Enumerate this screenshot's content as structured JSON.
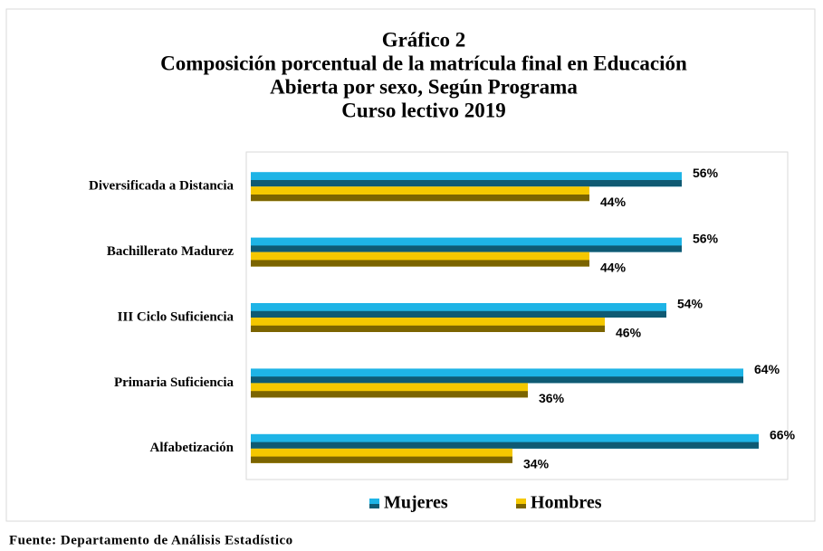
{
  "chart_data": {
    "type": "bar",
    "orientation": "horizontal",
    "title": [
      "Gráfico 2",
      "Composición porcentual de la matrícula final en Educación",
      "Abierta por sexo, Según Programa",
      "Curso lectivo 2019"
    ],
    "categories": [
      "Diversificada a Distancia",
      "Bachillerato Madurez",
      "III Ciclo Suficiencia",
      "Primaria Suficiencia",
      "Alfabetización"
    ],
    "series": [
      {
        "name": "Mujeres",
        "color": "#1eb4e6",
        "values": [
          56,
          56,
          54,
          64,
          66
        ],
        "value_labels": [
          "56%",
          "56%",
          "54%",
          "64%",
          "66%"
        ]
      },
      {
        "name": "Hombres",
        "color": "#f5c800",
        "values": [
          44,
          44,
          46,
          36,
          34
        ],
        "value_labels": [
          "44%",
          "44%",
          "46%",
          "36%",
          "34%"
        ]
      }
    ],
    "xlim": [
      0,
      70
    ],
    "source": "Fuente: Departamento de Análisis Estadístico"
  }
}
